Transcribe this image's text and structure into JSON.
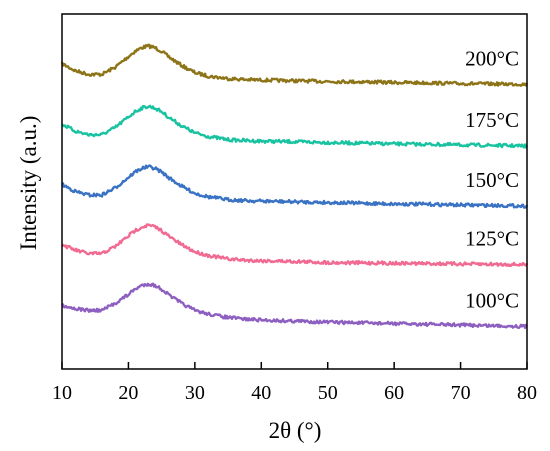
{
  "chart_data": {
    "type": "line",
    "title": "",
    "xlabel": "2θ (°)",
    "ylabel": "Intensity (a.u.)",
    "xlim": [
      10,
      80
    ],
    "x_ticks": [
      "10",
      "20",
      "30",
      "40",
      "50",
      "60",
      "70",
      "80"
    ],
    "y_ticks": [],
    "grid": false,
    "x": [
      10,
      12,
      14,
      16,
      18,
      20,
      21,
      22,
      23,
      24,
      25,
      26,
      28,
      30,
      32,
      35,
      38,
      40,
      45,
      50,
      55,
      60,
      65,
      70,
      75,
      80
    ],
    "series": [
      {
        "name": "200°C",
        "color": "#8d7418",
        "values": [
          0.86,
          0.84,
          0.83,
          0.83,
          0.85,
          0.88,
          0.895,
          0.905,
          0.91,
          0.905,
          0.895,
          0.88,
          0.855,
          0.835,
          0.825,
          0.818,
          0.815,
          0.814,
          0.812,
          0.81,
          0.809,
          0.807,
          0.806,
          0.804,
          0.803,
          0.802
        ]
      },
      {
        "name": "175°C",
        "color": "#19c2a0",
        "values": [
          0.69,
          0.67,
          0.66,
          0.66,
          0.68,
          0.71,
          0.725,
          0.735,
          0.74,
          0.735,
          0.725,
          0.71,
          0.685,
          0.665,
          0.655,
          0.646,
          0.643,
          0.642,
          0.64,
          0.638,
          0.636,
          0.634,
          0.633,
          0.631,
          0.63,
          0.628
        ]
      },
      {
        "name": "150°C",
        "color": "#3a72c4",
        "values": [
          0.52,
          0.5,
          0.49,
          0.49,
          0.51,
          0.54,
          0.555,
          0.565,
          0.57,
          0.565,
          0.555,
          0.54,
          0.515,
          0.495,
          0.485,
          0.477,
          0.474,
          0.473,
          0.471,
          0.469,
          0.467,
          0.465,
          0.464,
          0.462,
          0.461,
          0.459
        ]
      },
      {
        "name": "125°C",
        "color": "#f06a92",
        "values": [
          0.35,
          0.335,
          0.325,
          0.325,
          0.345,
          0.375,
          0.39,
          0.4,
          0.405,
          0.4,
          0.39,
          0.375,
          0.35,
          0.33,
          0.32,
          0.31,
          0.306,
          0.305,
          0.303,
          0.3,
          0.299,
          0.298,
          0.297,
          0.296,
          0.295,
          0.294
        ]
      },
      {
        "name": "100°C",
        "color": "#8d5fc0",
        "values": [
          0.18,
          0.17,
          0.165,
          0.165,
          0.185,
          0.21,
          0.225,
          0.235,
          0.24,
          0.235,
          0.225,
          0.21,
          0.185,
          0.165,
          0.155,
          0.145,
          0.14,
          0.138,
          0.135,
          0.132,
          0.13,
          0.128,
          0.126,
          0.124,
          0.122,
          0.12
        ]
      }
    ]
  }
}
